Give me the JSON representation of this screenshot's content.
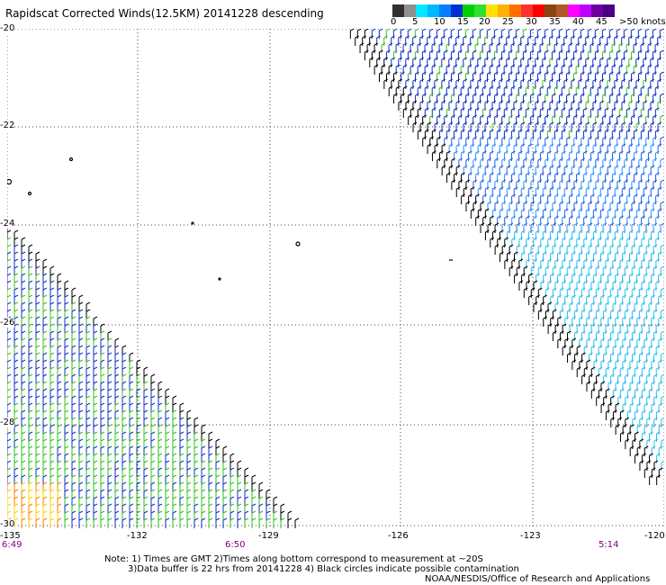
{
  "title": "Rapidscat Corrected Winds(12.5KM) 20141228 descending",
  "color_scale": {
    "colors": [
      "#303030",
      "#909090",
      "#00e8ff",
      "#00b8ff",
      "#0080ff",
      "#0030d0",
      "#00d000",
      "#30e030",
      "#ffe000",
      "#ffb000",
      "#ff7000",
      "#ff3030",
      "#ff0000",
      "#8b4513",
      "#b05a28",
      "#ff00ff",
      "#c000ff",
      "#7000a0",
      "#4b0082"
    ],
    "labels": [
      "0",
      "5",
      "10",
      "15",
      "20",
      "25",
      "30",
      "35",
      "40",
      "45",
      ">50 knots"
    ]
  },
  "lat_labels": [
    "-20",
    "-22",
    "-24",
    "-26",
    "-28",
    "-30"
  ],
  "lon_labels": [
    "-135",
    "-132",
    "-129",
    "-126",
    "-123",
    "-120"
  ],
  "times": [
    "6:49",
    "6:50",
    "5:14"
  ],
  "notes": [
    "Note: 1) Times are GMT 2)Times along bottom correspond to measurement at ~20S",
    "3)Data buffer is 22 hrs from 20141228 4) Black circles indicate possible contamination",
    "NOAA/NESDIS/Office of Research and Applications"
  ]
}
